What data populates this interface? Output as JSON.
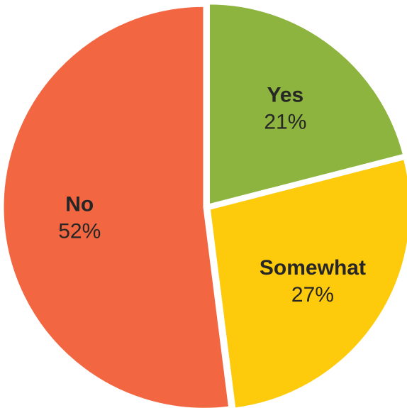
{
  "chart_data": {
    "type": "pie",
    "title": "",
    "slices": [
      {
        "label": "Yes",
        "value": 21,
        "value_label": "21%",
        "color": "#8db43e"
      },
      {
        "label": "Somewhat",
        "value": 27,
        "value_label": "27%",
        "color": "#fecb0c"
      },
      {
        "label": "No",
        "value": 52,
        "value_label": "52%",
        "color": "#f26641"
      }
    ],
    "start_angle": "12 o'clock",
    "direction": "clockwise",
    "legend": "none",
    "labels": "inside slices",
    "separator_color": "#ffffff"
  }
}
